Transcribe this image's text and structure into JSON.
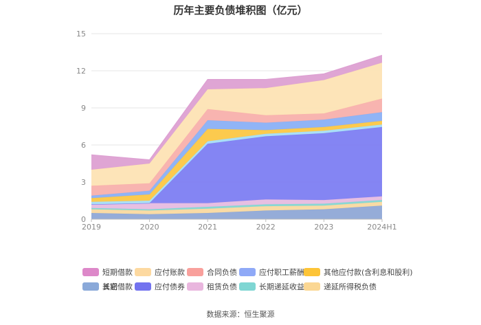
{
  "chart_data": {
    "type": "area",
    "stacked": true,
    "title": "历年主要负债堆积图（亿元）",
    "source": "数据来源：恒生聚源",
    "categories": [
      "2019",
      "2020",
      "2021",
      "2022",
      "2023",
      "2024H1"
    ],
    "ylim": [
      0,
      15
    ],
    "yticks": [
      "0",
      "3",
      "6",
      "9",
      "12",
      "15"
    ],
    "grid": true,
    "legend_position": "bottom",
    "series": [
      {
        "name": "其它",
        "color": "#8fa8d6",
        "values": [
          0.5,
          0.4,
          0.5,
          0.7,
          0.8,
          1.1
        ]
      },
      {
        "name": "递延所得税负债",
        "color": "#f9d9a0",
        "values": [
          0.3,
          0.3,
          0.35,
          0.35,
          0.3,
          0.3
        ]
      },
      {
        "name": "长期递延收益",
        "color": "#84d6d2",
        "values": [
          0.1,
          0.1,
          0.15,
          0.15,
          0.15,
          0.15
        ]
      },
      {
        "name": "租赁负债",
        "color": "#e6bce0",
        "values": [
          0.3,
          0.5,
          0.3,
          0.4,
          0.3,
          0.3
        ]
      },
      {
        "name": "应付债券",
        "color": "#7d7ef2",
        "values": [
          0.0,
          0.0,
          4.8,
          5.1,
          5.4,
          5.6
        ]
      },
      {
        "name": "长期借款",
        "color": "#a7ddf6",
        "values": [
          0.2,
          0.2,
          0.2,
          0.2,
          0.2,
          0.2
        ]
      },
      {
        "name": "其他应付款(含利息和股利)",
        "color": "#fcc744",
        "values": [
          0.3,
          0.5,
          1.0,
          0.3,
          0.3,
          0.3
        ]
      },
      {
        "name": "应付职工薪酬",
        "color": "#8ab0f5",
        "values": [
          0.2,
          0.3,
          0.7,
          0.6,
          0.6,
          0.7
        ]
      },
      {
        "name": "合同负债",
        "color": "#f8b0ac",
        "values": [
          0.8,
          0.6,
          0.9,
          0.6,
          0.5,
          1.1
        ]
      },
      {
        "name": "应付账款",
        "color": "#fde3b4",
        "values": [
          1.3,
          1.6,
          1.6,
          2.2,
          2.7,
          2.9
        ]
      },
      {
        "name": "短期借款",
        "color": "#dda0d2",
        "values": [
          1.2,
          0.3,
          0.8,
          0.7,
          0.5,
          0.6
        ]
      }
    ],
    "legend": [
      {
        "name": "短期借款",
        "color": "#dd88c9"
      },
      {
        "name": "应付账款",
        "color": "#fdd9a0"
      },
      {
        "name": "合同负债",
        "color": "#f9a09c"
      },
      {
        "name": "应付职工薪酬",
        "color": "#8fa9f7"
      },
      {
        "name": "其他应付款(含利息和股利)",
        "color": "#fdc437"
      },
      {
        "name": "长期借款",
        "color": "#a8dcf6"
      },
      {
        "name": "应付债券",
        "color": "#7373ef"
      },
      {
        "name": "租赁负债",
        "color": "#e9b6de"
      },
      {
        "name": "长期递延收益",
        "color": "#7fd6d3"
      },
      {
        "name": "递延所得税负债",
        "color": "#fbd793"
      },
      {
        "name": "其它",
        "color": "#8aa9d9"
      }
    ]
  }
}
